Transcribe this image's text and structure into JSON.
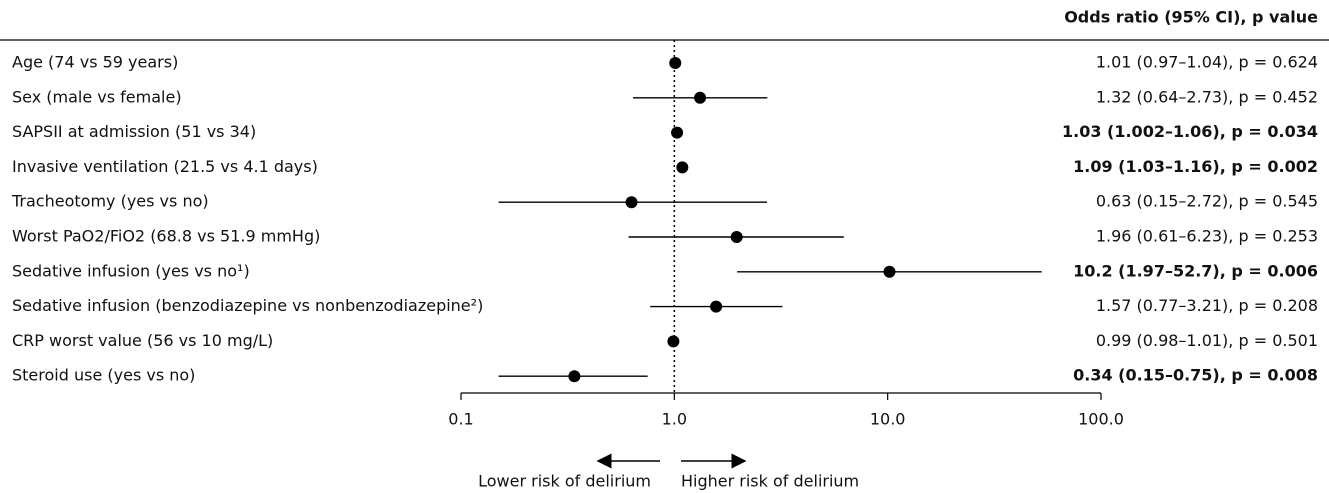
{
  "chart_data": {
    "type": "forest",
    "value_header": "Odds ratio (95% CI), p value",
    "categories": [
      "Age (74 vs 59 years)",
      "Sex (male vs female)",
      "SAPSII at admission (51 vs 34)",
      "Invasive ventilation (21.5 vs 4.1 days)",
      "Tracheotomy (yes vs no)",
      "Worst PaO2/FiO2 (68.8 vs 51.9 mmHg)",
      "Sedative infusion (yes vs no¹)",
      "Sedative infusion (benzodiazepine vs nonbenzodiazepine²)",
      "CRP worst value (56 vs 10 mg/L)",
      "Steroid use (yes vs no)"
    ],
    "values": [
      1.01,
      1.32,
      1.03,
      1.09,
      0.63,
      1.96,
      10.2,
      1.57,
      0.99,
      0.34
    ],
    "lower": [
      0.97,
      0.64,
      1.002,
      1.03,
      0.15,
      0.61,
      1.97,
      0.77,
      0.98,
      0.15
    ],
    "upper": [
      1.04,
      2.73,
      1.06,
      1.16,
      2.72,
      6.23,
      52.7,
      3.21,
      1.01,
      0.75
    ],
    "value_labels": [
      "1.01 (0.97–1.04), p = 0.624",
      "1.32 (0.64–2.73), p = 0.452",
      "1.03 (1.002–1.06), p = 0.034",
      "1.09 (1.03–1.16), p = 0.002",
      "0.63 (0.15–2.72), p = 0.545",
      "1.96 (0.61–6.23), p = 0.253",
      "10.2 (1.97–52.7), p = 0.006",
      "1.57 (0.77–3.21), p = 0.208",
      "0.99 (0.98–1.01), p = 0.501",
      "0.34 (0.15–0.75), p = 0.008"
    ],
    "significant": [
      false,
      false,
      true,
      true,
      false,
      false,
      true,
      false,
      false,
      true
    ],
    "xlim": [
      0.1,
      100
    ],
    "log_x": true,
    "xticks": [
      0.1,
      {
        "value": 1,
        "label": "1.0"
      },
      {
        "value": 10,
        "label": "10.0"
      },
      {
        "value": 100,
        "label": "100.0"
      }
    ],
    "reference_line": 1,
    "color": "#000000",
    "annotations": [
      "Lower risk of delirium",
      "Higher risk of delirium"
    ]
  }
}
